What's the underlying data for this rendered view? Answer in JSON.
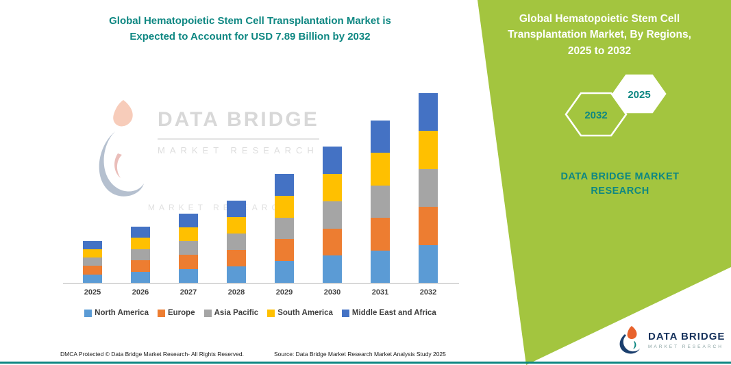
{
  "colors": {
    "accent_teal": "#0E8782",
    "panel_green": "#A3C53F",
    "logo_navy": "#16325C"
  },
  "header": {
    "title_line1": "Global Hematopoietic Stem Cell Transplantation Market is",
    "title_line2": "Expected to Account for USD 7.89 Billion by 2032"
  },
  "watermark": {
    "line1": "DATA BRIDGE",
    "line2": "MARKET RESEARCH",
    "line3": "MARKET RESEARCH"
  },
  "side_panel": {
    "heading": "Global Hematopoietic Stem Cell Transplantation Market, By Regions, 2025 to 2032",
    "hexagons": {
      "back": "2032",
      "front": "2025"
    },
    "brand_line1": "DATA BRIDGE MARKET",
    "brand_line2": "RESEARCH"
  },
  "brand_logo": {
    "title": "DATA BRIDGE",
    "subtitle": "MARKET RESEARCH"
  },
  "footer": {
    "dmca": "DMCA Protected © Data Bridge Market Research-  All Rights Reserved.",
    "source": "Source: Data Bridge Market Research  Market Analysis Study 2025"
  },
  "chart_data": {
    "type": "bar",
    "stacked": true,
    "title": "Global Hematopoietic Stem Cell Transplantation Market is Expected to Account for USD 7.89 Billion by 2032",
    "unit": "USD Billion",
    "categories": [
      "2025",
      "2026",
      "2027",
      "2028",
      "2029",
      "2030",
      "2031",
      "2032"
    ],
    "series": [
      {
        "name": "North America",
        "color": "#5B9BD5",
        "values": [
          0.35,
          0.47,
          0.58,
          0.68,
          0.91,
          1.13,
          1.35,
          1.58
        ]
      },
      {
        "name": "Europe",
        "color": "#ED7D31",
        "values": [
          0.35,
          0.47,
          0.58,
          0.68,
          0.91,
          1.13,
          1.35,
          1.58
        ]
      },
      {
        "name": "Asia Pacific",
        "color": "#A5A5A5",
        "values": [
          0.35,
          0.47,
          0.57,
          0.69,
          0.9,
          1.14,
          1.35,
          1.58
        ]
      },
      {
        "name": "South America",
        "color": "#FFC000",
        "values": [
          0.35,
          0.47,
          0.57,
          0.68,
          0.9,
          1.13,
          1.35,
          1.58
        ]
      },
      {
        "name": "Middle East and Africa",
        "color": "#4472C4",
        "values": [
          0.34,
          0.46,
          0.58,
          0.69,
          0.91,
          1.14,
          1.35,
          1.57
        ]
      }
    ],
    "totals": [
      1.74,
      2.34,
      2.88,
      3.42,
      4.53,
      5.67,
      6.75,
      7.89
    ],
    "ylim": [
      0,
      8
    ],
    "grid": false,
    "legend_position": "bottom",
    "y_axis_visible": false
  }
}
